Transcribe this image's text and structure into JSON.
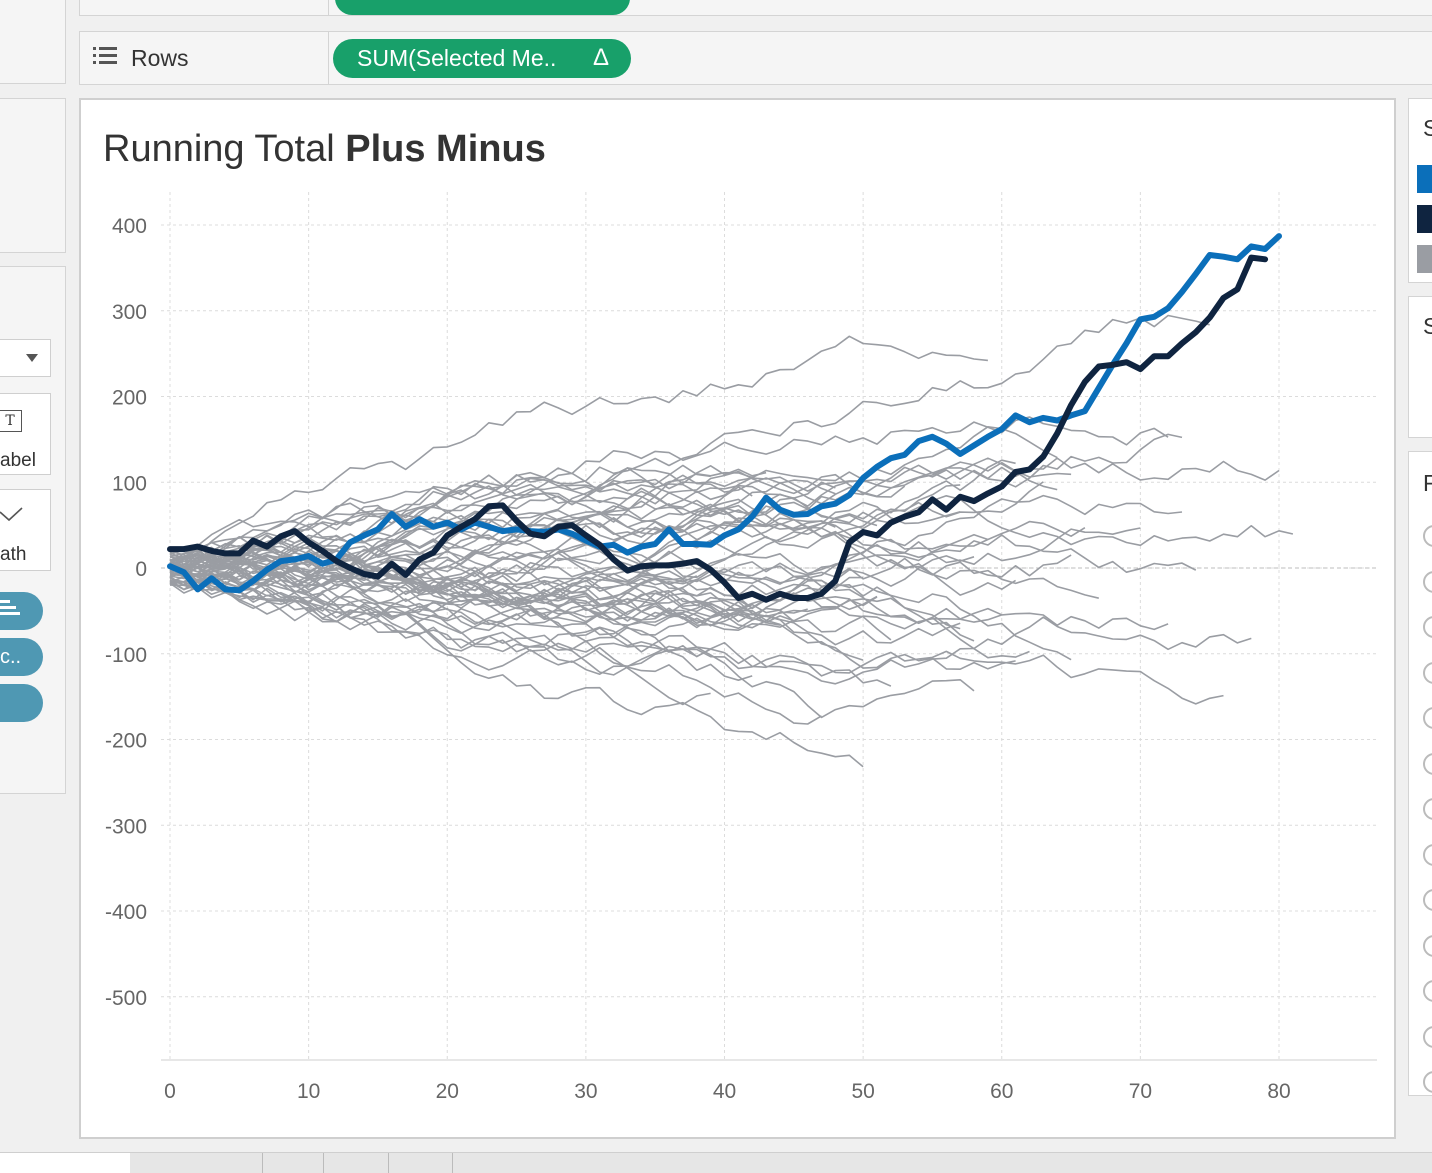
{
  "shelves": {
    "rows_label": "Rows",
    "rows_pill": "SUM(Selected Me..",
    "rows_pill_delta": "Δ"
  },
  "left_panel": {
    "label_button": "abel",
    "path_button": "ath",
    "pill_2": "c.."
  },
  "right_panel": {
    "card1_title": "S",
    "card2_title": "S",
    "card3_title": "F"
  },
  "colors": {
    "highlight_blue": "#0b6fba",
    "highlight_navy": "#0f2440",
    "others_gray": "#9a9da3",
    "pill_green": "#18a06a",
    "pill_blue": "#4f98b3"
  },
  "chart_data": {
    "type": "line",
    "title": "Running Total ",
    "title_bold": "Plus Minus",
    "xlabel": "",
    "ylabel": "",
    "xlim": [
      0,
      82
    ],
    "ylim": [
      -560,
      430
    ],
    "x_ticks": [
      0,
      10,
      20,
      30,
      40,
      50,
      60,
      70,
      80
    ],
    "y_ticks": [
      400,
      300,
      200,
      100,
      0,
      -100,
      -200,
      -300,
      -400,
      -500
    ],
    "grid": true,
    "highlight_series": [
      {
        "color": "#0b6fba",
        "points": [
          [
            0,
            2
          ],
          [
            1,
            -5
          ],
          [
            2,
            -25
          ],
          [
            3,
            -12
          ],
          [
            4,
            -25
          ],
          [
            5,
            -26
          ],
          [
            6,
            -15
          ],
          [
            7,
            -2
          ],
          [
            8,
            8
          ],
          [
            9,
            10
          ],
          [
            10,
            14
          ],
          [
            11,
            5
          ],
          [
            12,
            10
          ],
          [
            13,
            30
          ],
          [
            14,
            38
          ],
          [
            15,
            45
          ],
          [
            16,
            63
          ],
          [
            17,
            48
          ],
          [
            18,
            57
          ],
          [
            19,
            48
          ],
          [
            20,
            53
          ],
          [
            21,
            45
          ],
          [
            22,
            53
          ],
          [
            23,
            48
          ],
          [
            24,
            43
          ],
          [
            25,
            45
          ],
          [
            26,
            43
          ],
          [
            27,
            42
          ],
          [
            28,
            45
          ],
          [
            29,
            40
          ],
          [
            30,
            32
          ],
          [
            31,
            25
          ],
          [
            32,
            27
          ],
          [
            33,
            18
          ],
          [
            34,
            25
          ],
          [
            35,
            28
          ],
          [
            36,
            45
          ],
          [
            37,
            28
          ],
          [
            38,
            28
          ],
          [
            39,
            27
          ],
          [
            40,
            38
          ],
          [
            41,
            45
          ],
          [
            42,
            60
          ],
          [
            43,
            82
          ],
          [
            44,
            68
          ],
          [
            45,
            62
          ],
          [
            46,
            63
          ],
          [
            47,
            72
          ],
          [
            48,
            75
          ],
          [
            49,
            85
          ],
          [
            50,
            105
          ],
          [
            51,
            118
          ],
          [
            52,
            128
          ],
          [
            53,
            132
          ],
          [
            54,
            148
          ],
          [
            55,
            153
          ],
          [
            56,
            145
          ],
          [
            57,
            133
          ],
          [
            58,
            143
          ],
          [
            59,
            153
          ],
          [
            60,
            162
          ],
          [
            61,
            178
          ],
          [
            62,
            170
          ],
          [
            63,
            175
          ],
          [
            64,
            172
          ],
          [
            65,
            178
          ],
          [
            66,
            183
          ],
          [
            67,
            210
          ],
          [
            68,
            237
          ],
          [
            69,
            262
          ],
          [
            70,
            290
          ],
          [
            71,
            293
          ],
          [
            72,
            303
          ],
          [
            73,
            322
          ],
          [
            74,
            343
          ],
          [
            75,
            365
          ],
          [
            76,
            363
          ],
          [
            77,
            360
          ],
          [
            78,
            375
          ],
          [
            79,
            372
          ],
          [
            80,
            387
          ]
        ]
      },
      {
        "color": "#0f2440",
        "points": [
          [
            0,
            22
          ],
          [
            1,
            22
          ],
          [
            2,
            25
          ],
          [
            3,
            20
          ],
          [
            4,
            17
          ],
          [
            5,
            17
          ],
          [
            6,
            32
          ],
          [
            7,
            25
          ],
          [
            8,
            37
          ],
          [
            9,
            43
          ],
          [
            10,
            30
          ],
          [
            11,
            20
          ],
          [
            12,
            8
          ],
          [
            13,
            0
          ],
          [
            14,
            -7
          ],
          [
            15,
            -10
          ],
          [
            16,
            5
          ],
          [
            17,
            -8
          ],
          [
            18,
            10
          ],
          [
            19,
            18
          ],
          [
            20,
            38
          ],
          [
            21,
            48
          ],
          [
            22,
            57
          ],
          [
            23,
            72
          ],
          [
            24,
            73
          ],
          [
            25,
            55
          ],
          [
            26,
            40
          ],
          [
            27,
            37
          ],
          [
            28,
            48
          ],
          [
            29,
            50
          ],
          [
            30,
            38
          ],
          [
            31,
            27
          ],
          [
            32,
            10
          ],
          [
            33,
            -3
          ],
          [
            34,
            2
          ],
          [
            35,
            3
          ],
          [
            36,
            3
          ],
          [
            37,
            5
          ],
          [
            38,
            8
          ],
          [
            39,
            -2
          ],
          [
            40,
            -17
          ],
          [
            41,
            -35
          ],
          [
            42,
            -30
          ],
          [
            43,
            -37
          ],
          [
            44,
            -30
          ],
          [
            45,
            -35
          ],
          [
            46,
            -35
          ],
          [
            47,
            -30
          ],
          [
            48,
            -15
          ],
          [
            49,
            30
          ],
          [
            50,
            42
          ],
          [
            51,
            38
          ],
          [
            52,
            53
          ],
          [
            53,
            60
          ],
          [
            54,
            65
          ],
          [
            55,
            80
          ],
          [
            56,
            68
          ],
          [
            57,
            83
          ],
          [
            58,
            78
          ],
          [
            59,
            87
          ],
          [
            60,
            95
          ],
          [
            61,
            112
          ],
          [
            62,
            115
          ],
          [
            63,
            130
          ],
          [
            64,
            157
          ],
          [
            65,
            190
          ],
          [
            66,
            217
          ],
          [
            67,
            235
          ],
          [
            68,
            237
          ],
          [
            69,
            240
          ],
          [
            70,
            232
          ],
          [
            71,
            247
          ],
          [
            72,
            247
          ],
          [
            73,
            262
          ],
          [
            74,
            275
          ],
          [
            75,
            292
          ],
          [
            76,
            315
          ],
          [
            77,
            325
          ],
          [
            78,
            362
          ],
          [
            79,
            360
          ]
        ]
      }
    ],
    "gray_series_count": 60
  }
}
